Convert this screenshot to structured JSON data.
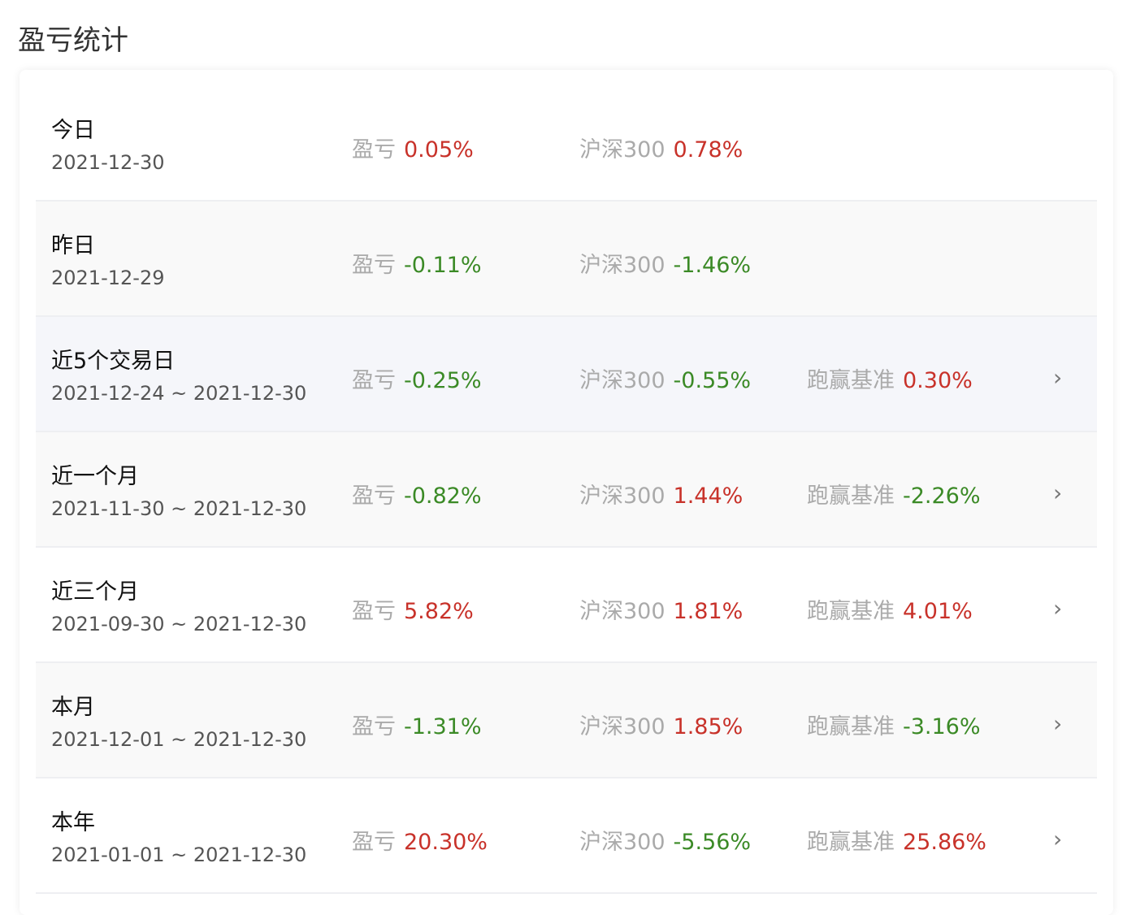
{
  "title": "盈亏统计",
  "colors": {
    "positive": "#c8322a",
    "negative": "#3b8a26",
    "label": "#aaaaaa"
  },
  "labels": {
    "pnl": "盈亏",
    "benchmark": "沪深300",
    "excess": "跑赢基准"
  },
  "rows": [
    {
      "period": "今日",
      "dates": "2021-12-30",
      "pnl": "0.05%",
      "benchmark": "0.78%",
      "excess": null,
      "chevron": false
    },
    {
      "period": "昨日",
      "dates": "2021-12-29",
      "pnl": "-0.11%",
      "benchmark": "-1.46%",
      "excess": null,
      "chevron": false
    },
    {
      "period": "近5个交易日",
      "dates": "2021-12-24 ~ 2021-12-30",
      "pnl": "-0.25%",
      "benchmark": "-0.55%",
      "excess": "0.30%",
      "chevron": true
    },
    {
      "period": "近一个月",
      "dates": "2021-11-30 ~ 2021-12-30",
      "pnl": "-0.82%",
      "benchmark": "1.44%",
      "excess": "-2.26%",
      "chevron": true
    },
    {
      "period": "近三个月",
      "dates": "2021-09-30 ~ 2021-12-30",
      "pnl": "5.82%",
      "benchmark": "1.81%",
      "excess": "4.01%",
      "chevron": true
    },
    {
      "period": "本月",
      "dates": "2021-12-01 ~ 2021-12-30",
      "pnl": "-1.31%",
      "benchmark": "1.85%",
      "excess": "-3.16%",
      "chevron": true
    },
    {
      "period": "本年",
      "dates": "2021-01-01 ~ 2021-12-30",
      "pnl": "20.30%",
      "benchmark": "-5.56%",
      "excess": "25.86%",
      "chevron": true
    }
  ]
}
